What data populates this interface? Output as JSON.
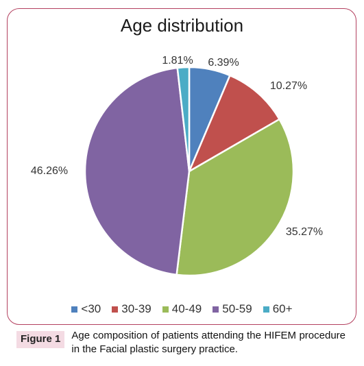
{
  "chart_data": {
    "type": "pie",
    "title": "Age distribution",
    "slices": [
      {
        "label": "<30",
        "value": 6.39,
        "value_label": "6.39%",
        "color": "#4f81bd"
      },
      {
        "label": "30-39",
        "value": 10.27,
        "value_label": "10.27%",
        "color": "#c0504d"
      },
      {
        "label": "40-49",
        "value": 35.27,
        "value_label": "35.27%",
        "color": "#9bbb59"
      },
      {
        "label": "50-59",
        "value": 46.26,
        "value_label": "46.26%",
        "color": "#8064a2"
      },
      {
        "label": "60+",
        "value": 1.81,
        "value_label": "1.81%",
        "color": "#4bacc6"
      }
    ],
    "legend_position": "bottom"
  },
  "caption": {
    "label": "Figure 1",
    "text": "Age composition of patients attending the HIFEM procedure in the Facial plastic surgery practice."
  }
}
